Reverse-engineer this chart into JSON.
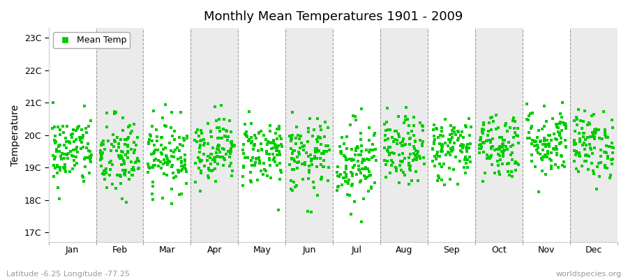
{
  "title": "Monthly Mean Temperatures 1901 - 2009",
  "ylabel": "Temperature",
  "xlabel_labels": [
    "Jan",
    "Feb",
    "Mar",
    "Apr",
    "May",
    "Jun",
    "Jul",
    "Aug",
    "Sep",
    "Oct",
    "Nov",
    "Dec"
  ],
  "ytick_labels": [
    "17C",
    "18C",
    "19C",
    "20C",
    "21C",
    "22C",
    "23C"
  ],
  "ytick_values": [
    17,
    18,
    19,
    20,
    21,
    22,
    23
  ],
  "ylim": [
    16.7,
    23.3
  ],
  "dot_color": "#00CC00",
  "bg_color_even": "#FFFFFF",
  "bg_color_odd": "#EBEBEB",
  "legend_label": "Mean Temp",
  "footer_left": "Latitude -6.25 Longitude -77.25",
  "footer_right": "worldspecies.org",
  "seed": 42,
  "years": 109,
  "monthly_means": [
    19.5,
    19.3,
    19.4,
    19.6,
    19.5,
    19.3,
    19.2,
    19.5,
    19.6,
    19.7,
    19.8,
    19.7
  ],
  "monthly_stds": [
    0.55,
    0.65,
    0.55,
    0.5,
    0.52,
    0.58,
    0.65,
    0.52,
    0.5,
    0.52,
    0.55,
    0.52
  ]
}
